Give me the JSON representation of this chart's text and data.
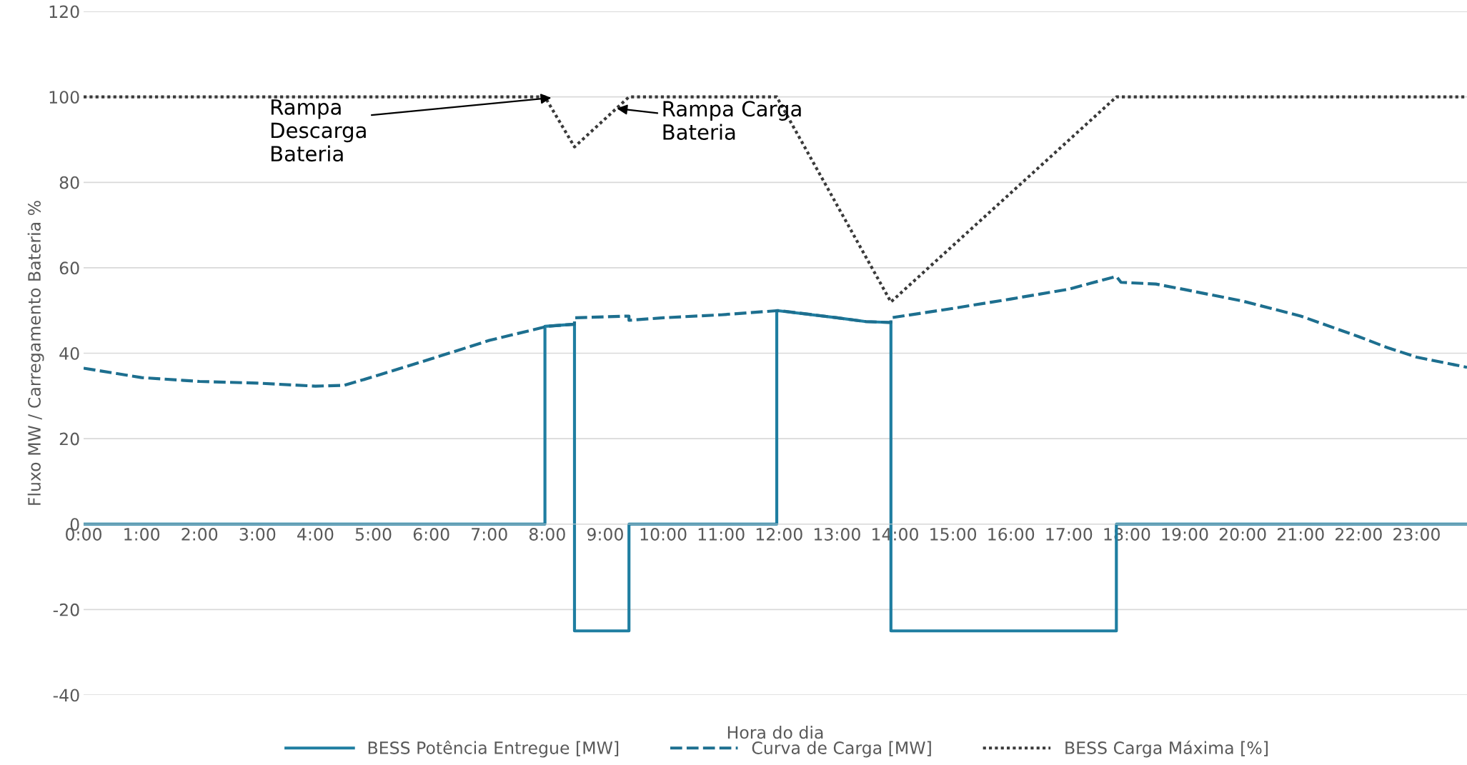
{
  "chart_data": {
    "type": "line",
    "xlabel": "Hora do dia",
    "ylabel": "Fluxo MW / Carregamento Bateria %",
    "xlim": [
      0,
      23.87
    ],
    "ylim": [
      -40,
      120
    ],
    "xticks": [
      {
        "value": 0,
        "label": "0:00"
      },
      {
        "value": 1,
        "label": "1:00"
      },
      {
        "value": 2,
        "label": "2:00"
      },
      {
        "value": 3,
        "label": "3:00"
      },
      {
        "value": 4,
        "label": "4:00"
      },
      {
        "value": 5,
        "label": "5:00"
      },
      {
        "value": 6,
        "label": "6:00"
      },
      {
        "value": 7,
        "label": "7:00"
      },
      {
        "value": 8,
        "label": "8:00"
      },
      {
        "value": 9,
        "label": "9:00"
      },
      {
        "value": 10,
        "label": "10:00"
      },
      {
        "value": 11,
        "label": "11:00"
      },
      {
        "value": 12,
        "label": "12:00"
      },
      {
        "value": 13,
        "label": "13:00"
      },
      {
        "value": 14,
        "label": "14:00"
      },
      {
        "value": 15,
        "label": "15:00"
      },
      {
        "value": 16,
        "label": "16:00"
      },
      {
        "value": 17,
        "label": "17:00"
      },
      {
        "value": 18,
        "label": "18:00"
      },
      {
        "value": 19,
        "label": "19:00"
      },
      {
        "value": 20,
        "label": "20:00"
      },
      {
        "value": 21,
        "label": "21:00"
      },
      {
        "value": 22,
        "label": "22:00"
      },
      {
        "value": 23,
        "label": "23:00"
      }
    ],
    "yticks": [
      -40,
      -20,
      0,
      20,
      40,
      60,
      80,
      100,
      120
    ],
    "grid": "y",
    "legend": "bottom",
    "marker": "none",
    "series": [
      {
        "name": "BESS Potência Entregue [MW]",
        "color": "#1f7ea1",
        "line_style": "solid",
        "x": [
          0,
          7.96,
          7.96,
          8.47,
          8.47,
          9.41,
          9.41,
          11.96,
          11.96,
          13,
          13.5,
          13.93,
          13.93,
          17.82,
          17.82,
          23.87
        ],
        "values": [
          0,
          0,
          46.3,
          46.8,
          -25,
          -25,
          0,
          0,
          50,
          48.3,
          47.4,
          47.2,
          -25,
          -25,
          0,
          0
        ]
      },
      {
        "name": "Curva de Carga [MW]",
        "color": "#1d6f8f",
        "line_style": "dashed",
        "x": [
          0,
          1,
          2,
          3,
          4,
          4.5,
          5,
          6,
          7,
          8,
          8.47,
          8.47,
          9.41,
          9.41,
          10,
          11,
          12,
          13,
          13.5,
          13.93,
          13.93,
          15,
          16,
          17,
          17.82,
          17.9,
          18.5,
          19,
          20,
          21,
          22,
          22.5,
          23,
          23.87
        ],
        "values": [
          36.5,
          34.3,
          33.4,
          33,
          32.3,
          32.5,
          34.5,
          38.7,
          43,
          46.3,
          46.8,
          48.3,
          48.7,
          47.7,
          48.3,
          49,
          50,
          48.3,
          47.4,
          47.2,
          48.3,
          50.5,
          52.7,
          55,
          58,
          56.6,
          56.2,
          54.9,
          52.2,
          48.7,
          43.9,
          41.3,
          39.1,
          36.7
        ]
      },
      {
        "name": "BESS Carga Máxima [%]",
        "color": "#3a3a3a",
        "line_style": "dotted",
        "x": [
          0,
          7.96,
          8.47,
          9.41,
          11.96,
          13.93,
          17.82,
          23.87
        ],
        "values": [
          100,
          100,
          88.3,
          100,
          100,
          52,
          100,
          100
        ]
      }
    ],
    "annotations": [
      {
        "text": "Rampa\nDescarga\nBateria",
        "x": 8.07,
        "y": 99.8
      },
      {
        "text": "Rampa Carga\nBateria",
        "x": 9.2,
        "y": 97.3
      }
    ]
  }
}
